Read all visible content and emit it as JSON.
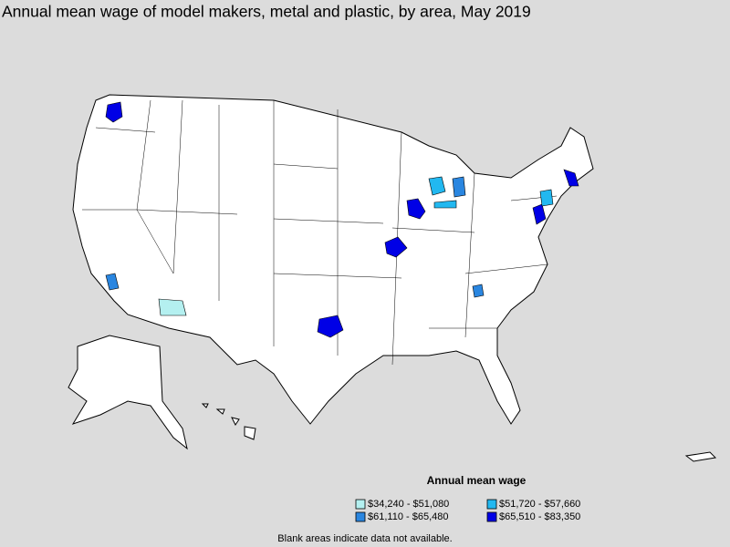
{
  "title": "Annual mean wage of model makers, metal and plastic, by area, May 2019",
  "legend": {
    "title": "Annual mean wage",
    "items": [
      {
        "label": "$34,240 - $51,080",
        "color": "#b4f0f0"
      },
      {
        "label": "$51,720 - $57,660",
        "color": "#22b8f0"
      },
      {
        "label": "$61,110 - $65,480",
        "color": "#2a86e0"
      },
      {
        "label": "$65,510 - $83,350",
        "color": "#0000e6"
      }
    ]
  },
  "note": "Blank areas indicate data not available."
}
